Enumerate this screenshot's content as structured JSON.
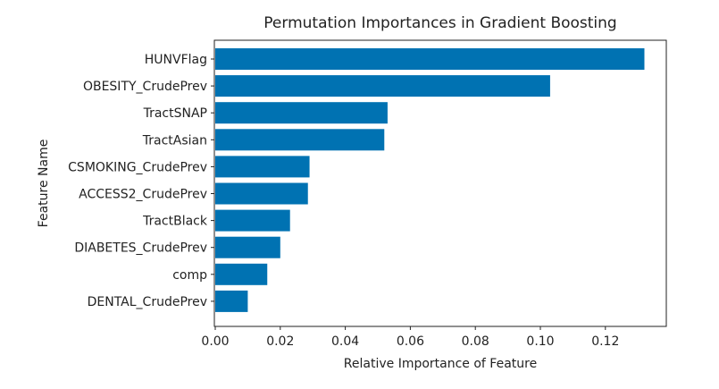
{
  "chart_data": {
    "type": "bar",
    "orientation": "horizontal",
    "title": "Permutation Importances in Gradient Boosting",
    "xlabel": "Relative Importance of Feature",
    "ylabel": "Feature Name",
    "categories": [
      "HUNVFlag",
      "OBESITY_CrudePrev",
      "TractSNAP",
      "TractAsian",
      "CSMOKING_CrudePrev",
      "ACCESS2_CrudePrev",
      "TractBlack",
      "DIABETES_CrudePrev",
      "comp",
      "DENTAL_CrudePrev"
    ],
    "values": [
      0.132,
      0.103,
      0.053,
      0.052,
      0.029,
      0.0285,
      0.023,
      0.02,
      0.016,
      0.01
    ],
    "xlim": [
      0.0,
      0.139
    ],
    "xticks": [
      0.0,
      0.02,
      0.04,
      0.06,
      0.08,
      0.1,
      0.12
    ],
    "xtick_labels": [
      "0.00",
      "0.02",
      "0.04",
      "0.06",
      "0.08",
      "0.10",
      "0.12"
    ],
    "bar_color": "#0072B2",
    "grid": false
  }
}
